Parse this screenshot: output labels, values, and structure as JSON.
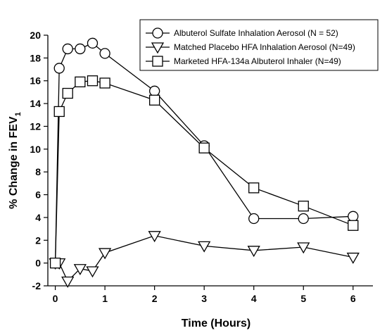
{
  "chart_data": {
    "type": "line",
    "title": "",
    "xlabel": "Time (Hours)",
    "ylabel": "% Change in FEV",
    "ylabel_subscript": "1",
    "xlim": [
      -0.15,
      6.4
    ],
    "ylim": [
      -2,
      20
    ],
    "xticks": [
      0,
      1,
      2,
      3,
      4,
      5,
      6
    ],
    "yticks": [
      -2,
      0,
      2,
      4,
      6,
      8,
      10,
      12,
      14,
      16,
      18,
      20
    ],
    "grid": false,
    "legend_position": "top-right",
    "series": [
      {
        "name": "Albuterol Sulfate Inhalation Aerosol (N = 52)",
        "marker": "circle",
        "x": [
          0,
          0.08,
          0.25,
          0.5,
          0.75,
          1,
          2,
          3,
          4,
          5,
          6
        ],
        "y": [
          0,
          17.1,
          18.8,
          18.8,
          19.3,
          18.4,
          15.1,
          10.3,
          3.9,
          3.9,
          4.1
        ]
      },
      {
        "name": "Matched Placebo HFA Inhalation Aerosol (N=49)",
        "marker": "triangle-down",
        "x": [
          0,
          0.08,
          0.25,
          0.5,
          0.75,
          1,
          2,
          3,
          4,
          5,
          6
        ],
        "y": [
          0,
          0,
          -1.6,
          -0.5,
          -0.7,
          0.9,
          2.4,
          1.5,
          1.1,
          1.4,
          0.5
        ]
      },
      {
        "name": "Marketed HFA-134a Albuterol Inhaler (N=49)",
        "marker": "square",
        "x": [
          0,
          0.08,
          0.25,
          0.5,
          0.75,
          1,
          2,
          3,
          4,
          5,
          6
        ],
        "y": [
          0,
          13.3,
          14.9,
          15.9,
          16.0,
          15.8,
          14.3,
          10.1,
          6.6,
          5.0,
          3.3
        ]
      }
    ]
  }
}
